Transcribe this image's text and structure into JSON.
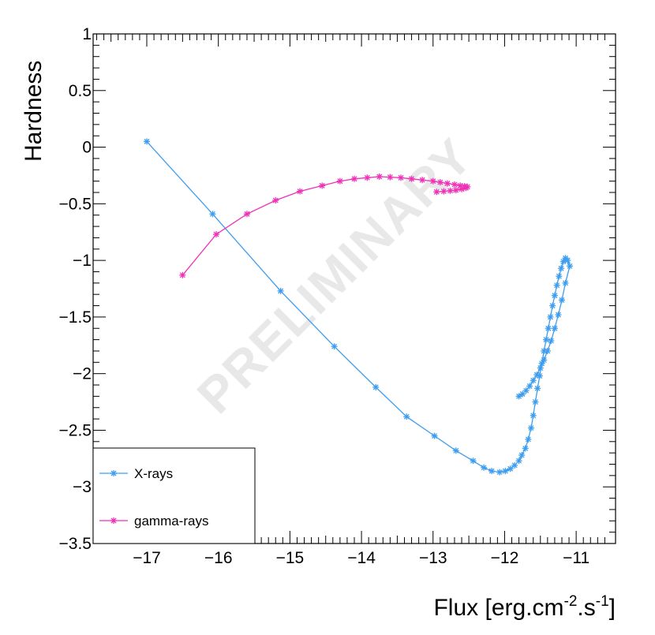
{
  "chart_data": {
    "type": "line",
    "title": "",
    "xlabel": "Flux [erg.cm",
    "xlabel_sup1": "-2",
    "xlabel_mid": ".s",
    "xlabel_sup2": "-1",
    "xlabel_end": "]",
    "ylabel": "Hardness",
    "watermark": "PRELIMINARY",
    "xlim": [
      -17.75,
      -10.45
    ],
    "ylim": [
      -3.5,
      1.0
    ],
    "x_ticks": [
      -17,
      -16,
      -15,
      -14,
      -13,
      -12,
      -11
    ],
    "x_tick_labels": [
      "−17",
      "−16",
      "−15",
      "−14",
      "−13",
      "−12",
      "−11"
    ],
    "y_ticks": [
      -3.5,
      -3,
      -2.5,
      -2,
      -1.5,
      -1,
      -0.5,
      0,
      0.5,
      1
    ],
    "y_tick_labels": [
      "−3.5",
      "−3",
      "−2.5",
      "−2",
      "−1.5",
      "−1",
      "−0.5",
      "0",
      "0.5",
      "1"
    ],
    "legend_position": "bottom-left",
    "series": [
      {
        "name": "X-rays",
        "color": "#3d9df0",
        "marker": "asterisk",
        "x": [
          -17.0,
          -16.08,
          -15.13,
          -14.38,
          -13.8,
          -13.37,
          -12.98,
          -12.68,
          -12.44,
          -12.29,
          -12.18,
          -12.07,
          -11.99,
          -11.92,
          -11.86,
          -11.8,
          -11.76,
          -11.71,
          -11.67,
          -11.63,
          -11.6,
          -11.57,
          -11.54,
          -11.51,
          -11.48,
          -11.45,
          -11.42,
          -11.39,
          -11.36,
          -11.33,
          -11.3,
          -11.27,
          -11.24,
          -11.21,
          -11.18,
          -11.15,
          -11.12,
          -11.09,
          -11.15,
          -11.2,
          -11.25,
          -11.3,
          -11.35,
          -11.4,
          -11.45,
          -11.5,
          -11.55,
          -11.6,
          -11.65,
          -11.7,
          -11.75,
          -11.8
        ],
        "y": [
          0.05,
          -0.59,
          -1.27,
          -1.76,
          -2.12,
          -2.38,
          -2.55,
          -2.68,
          -2.77,
          -2.83,
          -2.86,
          -2.87,
          -2.86,
          -2.84,
          -2.81,
          -2.77,
          -2.72,
          -2.66,
          -2.58,
          -2.48,
          -2.37,
          -2.25,
          -2.13,
          -2.02,
          -1.91,
          -1.8,
          -1.7,
          -1.6,
          -1.5,
          -1.4,
          -1.31,
          -1.22,
          -1.14,
          -1.07,
          -1.01,
          -0.98,
          -1.0,
          -1.05,
          -1.2,
          -1.35,
          -1.48,
          -1.6,
          -1.71,
          -1.8,
          -1.88,
          -1.95,
          -2.01,
          -2.06,
          -2.11,
          -2.15,
          -2.18,
          -2.2
        ]
      },
      {
        "name": "gamma-rays",
        "color": "#f030b8",
        "marker": "asterisk",
        "x": [
          -16.5,
          -16.03,
          -15.6,
          -15.2,
          -14.86,
          -14.55,
          -14.3,
          -14.1,
          -13.92,
          -13.75,
          -13.6,
          -13.45,
          -13.3,
          -13.15,
          -13.0,
          -12.9,
          -12.8,
          -12.7,
          -12.62,
          -12.56,
          -12.52,
          -12.54,
          -12.6,
          -12.68,
          -12.76,
          -12.85,
          -12.95
        ],
        "y": [
          -1.13,
          -0.77,
          -0.59,
          -0.47,
          -0.39,
          -0.34,
          -0.3,
          -0.28,
          -0.27,
          -0.26,
          -0.265,
          -0.27,
          -0.28,
          -0.29,
          -0.3,
          -0.31,
          -0.32,
          -0.33,
          -0.34,
          -0.345,
          -0.35,
          -0.36,
          -0.37,
          -0.38,
          -0.385,
          -0.39,
          -0.395
        ]
      }
    ]
  }
}
